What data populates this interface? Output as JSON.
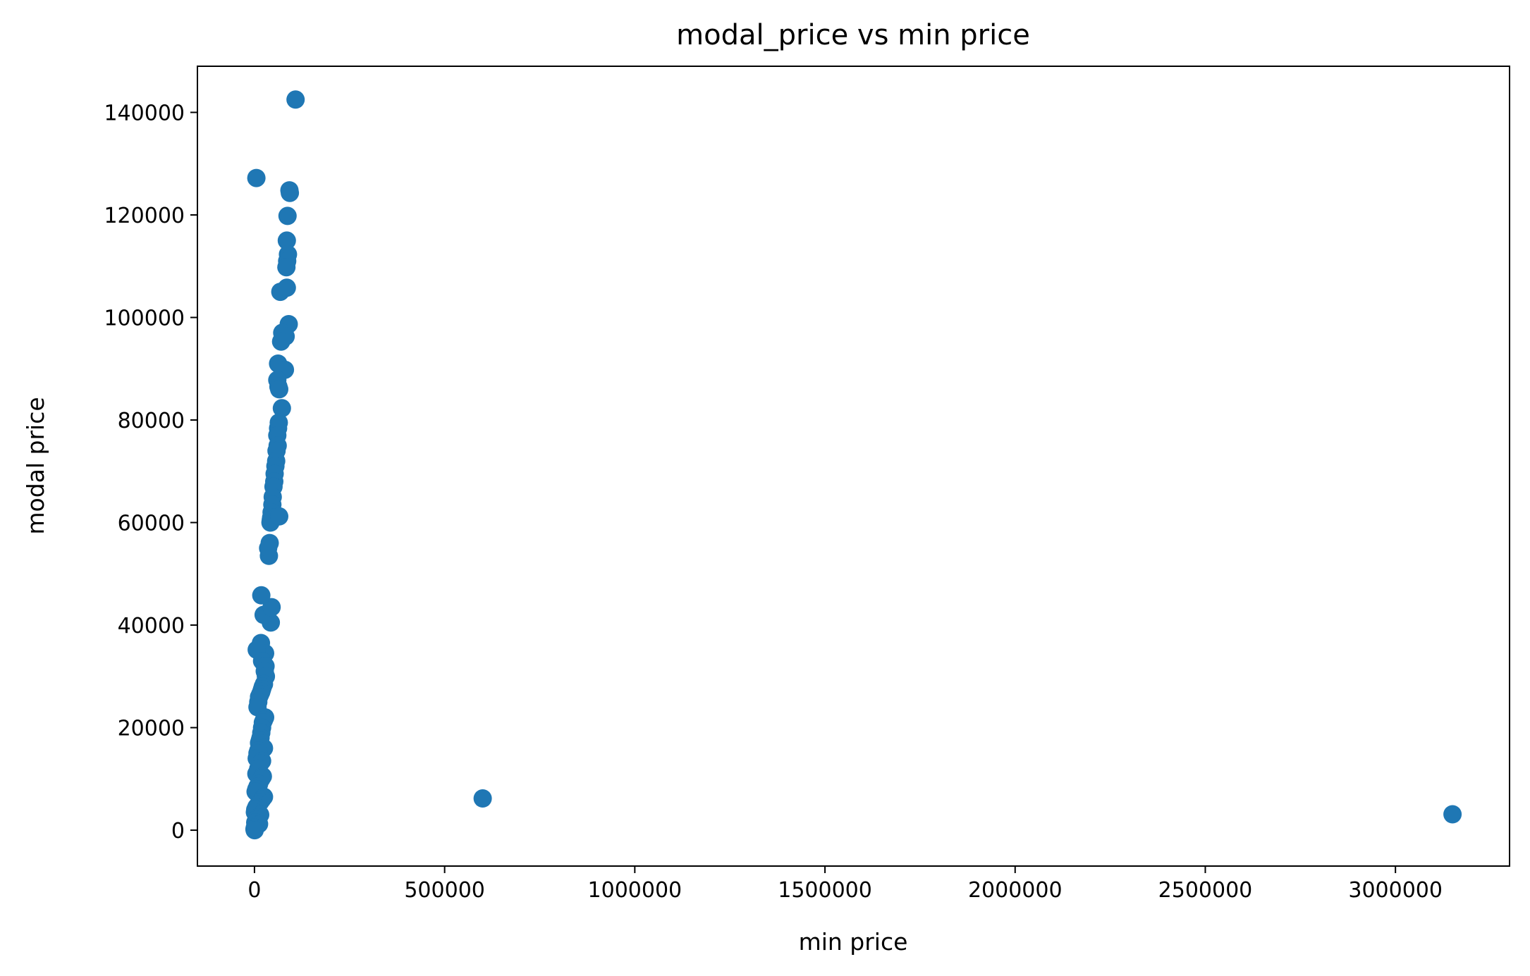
{
  "chart_data": {
    "type": "scatter",
    "title": "modal_price vs min price",
    "xlabel": "min price",
    "ylabel": "modal price",
    "xlim": [
      -150000,
      3300000
    ],
    "ylim": [
      -7000,
      149000
    ],
    "xticks": [
      0,
      500000,
      1000000,
      1500000,
      2000000,
      2500000,
      3000000
    ],
    "xtick_labels": [
      "0",
      "500000",
      "1000000",
      "1500000",
      "2000000",
      "2500000",
      "3000000"
    ],
    "yticks": [
      0,
      20000,
      40000,
      60000,
      80000,
      100000,
      120000,
      140000
    ],
    "ytick_labels": [
      "0",
      "20000",
      "40000",
      "60000",
      "80000",
      "100000",
      "120000",
      "140000"
    ],
    "grid": false,
    "marker_color": "#1f77b4",
    "series": [
      {
        "x": [
          108000,
          5000,
          92000,
          93000,
          87000,
          85000,
          88000,
          86000,
          84000,
          68000,
          85000,
          90000,
          73000,
          82000,
          70000,
          62000,
          80000,
          60000,
          63000,
          65000,
          72000,
          64000,
          62000,
          60000,
          61000,
          58000,
          57000,
          55000,
          53000,
          52000,
          50000,
          48000,
          47000,
          45000,
          44000,
          43000,
          42000,
          40000,
          38000,
          65000,
          36000,
          43000,
          24000,
          45000,
          18000,
          15000,
          17000,
          28000,
          6000,
          20000,
          29000,
          27000,
          30000,
          25000,
          22000,
          20000,
          18000,
          15000,
          12000,
          10000,
          8000,
          28000,
          25000,
          22000,
          20000,
          18000,
          16000,
          14000,
          12000,
          25000,
          10000,
          8000,
          6000,
          20000,
          15000,
          10000,
          5000,
          22000,
          18000,
          12000,
          8000,
          5000,
          3000,
          25000,
          20000,
          15000,
          10000,
          5000,
          2000,
          1000,
          15000,
          10000,
          5000,
          2000,
          12000,
          8000,
          4000,
          1000,
          0,
          500,
          600000,
          3150000
        ],
        "y": [
          142500,
          127200,
          124800,
          124300,
          119800,
          115000,
          112300,
          111000,
          109800,
          105000,
          105800,
          98700,
          97000,
          96300,
          95300,
          91000,
          89800,
          87800,
          86500,
          86000,
          82300,
          79500,
          78400,
          77000,
          75000,
          74000,
          72000,
          71000,
          69500,
          68000,
          67000,
          65000,
          63500,
          62000,
          61000,
          60500,
          60000,
          56000,
          53500,
          61200,
          55000,
          40500,
          42000,
          43500,
          45800,
          35000,
          36500,
          34500,
          35200,
          33000,
          32000,
          31000,
          30000,
          28500,
          28000,
          27500,
          27000,
          26500,
          26000,
          25000,
          24000,
          22000,
          21500,
          21000,
          20000,
          19000,
          18000,
          17500,
          17000,
          16000,
          15500,
          15000,
          14000,
          13500,
          13000,
          12000,
          11000,
          10500,
          10000,
          9000,
          8500,
          8000,
          7500,
          6500,
          6000,
          5500,
          5000,
          4500,
          4000,
          3500,
          3000,
          2500,
          2000,
          1500,
          1200,
          1000,
          800,
          500,
          200,
          0,
          6200,
          3100
        ]
      }
    ]
  }
}
